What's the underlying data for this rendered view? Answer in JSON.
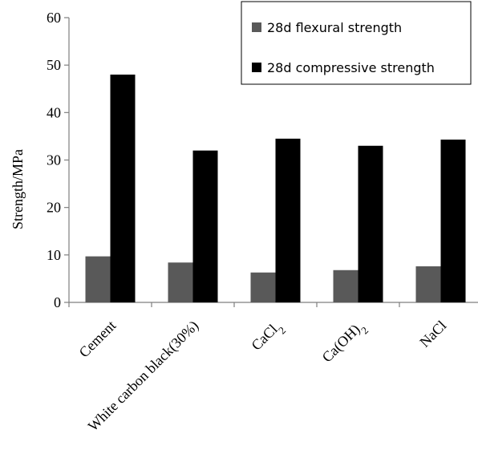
{
  "chart_data": {
    "type": "bar",
    "categories": [
      "Cement",
      "White carbon black(30%)",
      "CaCl2",
      "Ca(OH)2",
      "NaCl"
    ],
    "category_display": [
      [
        {
          "t": "Cement",
          "sub": false
        }
      ],
      [
        {
          "t": "White carbon black(30%)",
          "sub": false
        }
      ],
      [
        {
          "t": "CaCl",
          "sub": false
        },
        {
          "t": "2",
          "sub": true
        }
      ],
      [
        {
          "t": "Ca(OH)",
          "sub": false
        },
        {
          "t": "2",
          "sub": true
        }
      ],
      [
        {
          "t": "NaCl",
          "sub": false
        }
      ]
    ],
    "series": [
      {
        "name": "28d flexural strength",
        "color": "#595959",
        "values": [
          9.7,
          8.4,
          6.3,
          6.8,
          7.6
        ]
      },
      {
        "name": "28d compressive strength",
        "color": "#000000",
        "values": [
          48.0,
          32.0,
          34.5,
          33.0,
          34.3
        ]
      }
    ],
    "title": "",
    "xlabel": "",
    "ylabel": "Strength/MPa",
    "ylim": [
      0,
      60
    ],
    "yticks": [
      0,
      10,
      20,
      30,
      40,
      50,
      60
    ],
    "grid": false,
    "legend_position": "top-right"
  }
}
